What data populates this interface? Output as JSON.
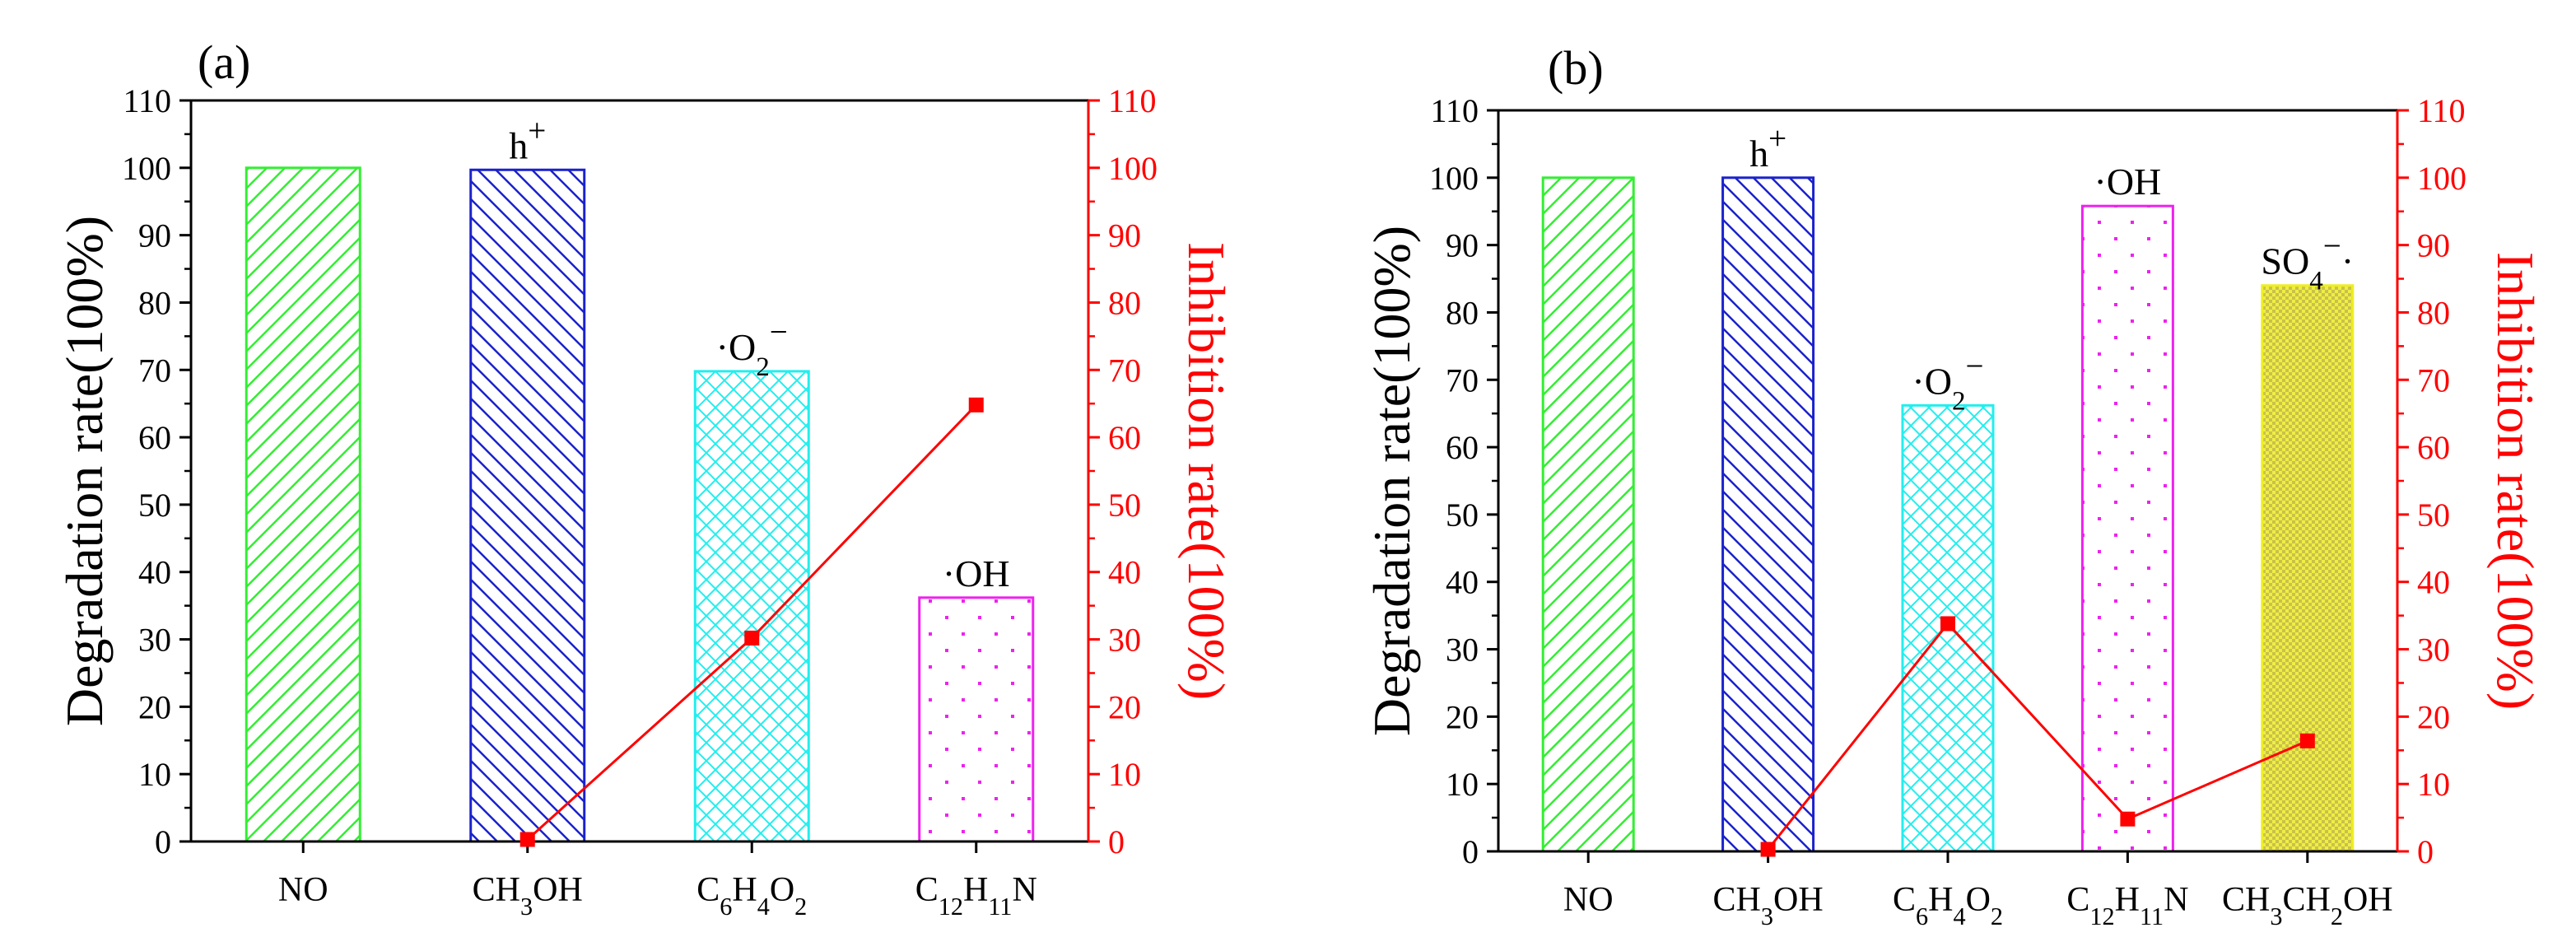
{
  "chart_data": [
    {
      "type": "bar",
      "panel_label": "(a)",
      "categories": [
        "NO",
        "CH3OH",
        "C6H4O2",
        "C12H11N"
      ],
      "bar_labels": [
        "",
        "h+",
        "·O2−",
        "·OH"
      ],
      "series": [
        {
          "values": [
            100,
            99.7,
            69.8,
            36.2
          ],
          "axis": "left"
        },
        {
          "type": "line",
          "values": [
            null,
            0.3,
            30.2,
            64.8
          ],
          "axis": "right",
          "color": "#ff0000"
        }
      ],
      "ylabel": "Degradation rate(100%)",
      "y2label": "Inhibition rate(100%)",
      "ylim": [
        0,
        110
      ],
      "y2lim": [
        0,
        110
      ],
      "yticks": [
        0,
        10,
        20,
        30,
        40,
        50,
        60,
        70,
        80,
        90,
        100,
        110
      ],
      "grid": false,
      "bar_colors": [
        "#33ee33",
        "#1a22cc",
        "#22eeee",
        "#ee22ee"
      ],
      "bar_patterns": [
        "diag-right",
        "diag-left",
        "crosshatch",
        "dots"
      ]
    },
    {
      "type": "bar",
      "panel_label": "(b)",
      "categories": [
        "NO",
        "CH3OH",
        "C6H4O2",
        "C12H11N",
        "CH3CH2OH"
      ],
      "bar_labels": [
        "",
        "h+",
        "·O2−",
        "·OH",
        "SO4−·"
      ],
      "series": [
        {
          "values": [
            100,
            100,
            66.2,
            95.8,
            84.0
          ],
          "axis": "left"
        },
        {
          "type": "line",
          "values": [
            null,
            0.3,
            33.8,
            4.8,
            16.4
          ],
          "axis": "right",
          "color": "#ff0000"
        }
      ],
      "ylabel": "Degradation rate(100%)",
      "y2label": "Inhibition rate(100%)",
      "ylim": [
        0,
        110
      ],
      "y2lim": [
        0,
        110
      ],
      "yticks": [
        0,
        10,
        20,
        30,
        40,
        50,
        60,
        70,
        80,
        90,
        100,
        110
      ],
      "grid": false,
      "bar_colors": [
        "#33ee33",
        "#1a22cc",
        "#22eeee",
        "#ee22ee",
        "#eeee22"
      ],
      "bar_patterns": [
        "diag-right",
        "diag-left",
        "crosshatch",
        "dots",
        "dense-check"
      ]
    }
  ]
}
